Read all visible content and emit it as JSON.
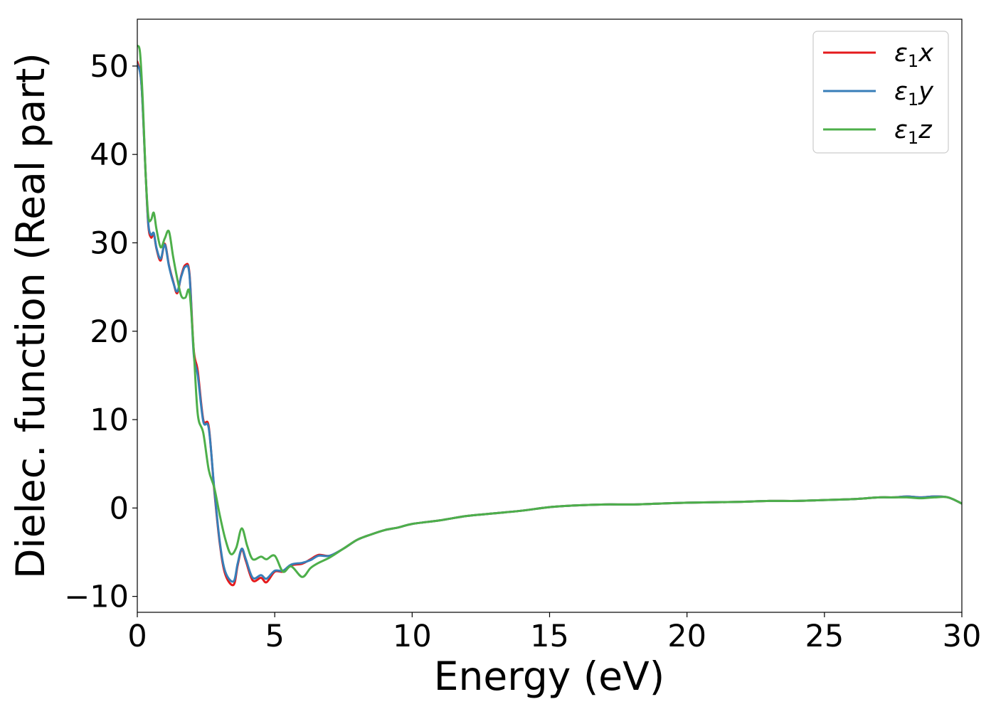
{
  "chart_data": {
    "type": "line",
    "title": "",
    "xlabel": "Energy (eV)",
    "ylabel": "Dielec. function (Real part)",
    "xlim": [
      0,
      30
    ],
    "ylim": [
      -11.8,
      55.3
    ],
    "xticks": [
      0,
      5,
      10,
      15,
      20,
      25,
      30
    ],
    "xtick_labels": [
      "0",
      "5",
      "10",
      "15",
      "20",
      "25",
      "30"
    ],
    "yticks": [
      -10,
      0,
      10,
      20,
      30,
      40,
      50
    ],
    "ytick_labels": [
      "−10",
      "0",
      "10",
      "20",
      "30",
      "40",
      "50"
    ],
    "grid": false,
    "legend_position": "top-right",
    "series": [
      {
        "name": "ε1x",
        "label_main": "ε",
        "label_sub": "1",
        "label_suffix": "x",
        "color": "#e41a1c",
        "x": [
          0,
          0.15,
          0.3,
          0.4,
          0.5,
          0.6,
          0.7,
          0.85,
          1.0,
          1.15,
          1.3,
          1.45,
          1.6,
          1.75,
          1.9,
          2.05,
          2.2,
          2.4,
          2.6,
          2.8,
          3.0,
          3.2,
          3.5,
          3.65,
          3.8,
          3.95,
          4.2,
          4.5,
          4.7,
          5.0,
          5.3,
          5.6,
          6.0,
          6.3,
          6.6,
          7.0,
          7.5,
          8.0,
          8.5,
          9.0,
          9.5,
          10.0,
          11.0,
          12.0,
          13.0,
          14.0,
          15.0,
          16.0,
          17.0,
          18.0,
          19.0,
          20.0,
          21.0,
          22.0,
          23.0,
          24.0,
          25.0,
          26.0,
          27.0,
          27.5,
          28.0,
          28.5,
          29.0,
          29.5,
          30.0
        ],
        "y": [
          50.5,
          48,
          38,
          32,
          30.6,
          31,
          29.3,
          28,
          29.9,
          27.5,
          25.7,
          24.3,
          26.3,
          27.5,
          26.5,
          18,
          15.5,
          10,
          9.2,
          2,
          -4,
          -7.5,
          -8.7,
          -6.5,
          -4.7,
          -6,
          -8.2,
          -7.9,
          -8.4,
          -7.2,
          -7.2,
          -6.5,
          -6.3,
          -5.8,
          -5.3,
          -5.4,
          -4.6,
          -3.6,
          -3.0,
          -2.5,
          -2.2,
          -1.8,
          -1.4,
          -0.9,
          -0.6,
          -0.3,
          0.1,
          0.3,
          0.4,
          0.4,
          0.5,
          0.6,
          0.65,
          0.7,
          0.8,
          0.8,
          0.9,
          1.0,
          1.2,
          1.2,
          1.3,
          1.2,
          1.3,
          1.2,
          0.5
        ]
      },
      {
        "name": "ε1y",
        "label_main": "ε",
        "label_sub": "1",
        "label_suffix": "y",
        "color": "#377eb8",
        "x": [
          0,
          0.15,
          0.3,
          0.4,
          0.5,
          0.6,
          0.7,
          0.85,
          1.0,
          1.15,
          1.3,
          1.45,
          1.6,
          1.75,
          1.9,
          2.05,
          2.2,
          2.4,
          2.6,
          2.8,
          3.0,
          3.2,
          3.5,
          3.65,
          3.8,
          3.95,
          4.2,
          4.5,
          4.7,
          5.0,
          5.3,
          5.6,
          6.0,
          6.3,
          6.6,
          7.0,
          7.5,
          8.0,
          8.5,
          9.0,
          9.5,
          10.0,
          11.0,
          12.0,
          13.0,
          14.0,
          15.0,
          16.0,
          17.0,
          18.0,
          19.0,
          20.0,
          21.0,
          22.0,
          23.0,
          24.0,
          25.0,
          26.0,
          27.0,
          27.5,
          28.0,
          28.5,
          29.0,
          29.5,
          30.0
        ],
        "y": [
          50.2,
          48,
          38,
          32.2,
          30.9,
          31.1,
          29.4,
          28.2,
          29.8,
          27.4,
          25.6,
          24.5,
          26.2,
          27.3,
          26.3,
          17.5,
          15.0,
          9.8,
          9.0,
          2.2,
          -3.8,
          -7.2,
          -8.3,
          -6.3,
          -4.6,
          -5.8,
          -7.9,
          -7.6,
          -8.0,
          -7.1,
          -7.1,
          -6.4,
          -6.2,
          -5.9,
          -5.4,
          -5.4,
          -4.6,
          -3.6,
          -3.0,
          -2.5,
          -2.2,
          -1.8,
          -1.4,
          -0.9,
          -0.6,
          -0.3,
          0.1,
          0.3,
          0.4,
          0.4,
          0.5,
          0.6,
          0.65,
          0.7,
          0.8,
          0.8,
          0.9,
          1.0,
          1.2,
          1.2,
          1.3,
          1.2,
          1.3,
          1.2,
          0.5
        ]
      },
      {
        "name": "ε1z",
        "label_main": "ε",
        "label_sub": "1",
        "label_suffix": "z",
        "color": "#4daf4a",
        "x": [
          0,
          0.1,
          0.2,
          0.3,
          0.4,
          0.5,
          0.6,
          0.7,
          0.85,
          1.0,
          1.15,
          1.3,
          1.45,
          1.6,
          1.75,
          1.9,
          2.05,
          2.2,
          2.4,
          2.6,
          2.8,
          3.0,
          3.2,
          3.4,
          3.6,
          3.8,
          4.0,
          4.2,
          4.5,
          4.7,
          5.0,
          5.3,
          5.6,
          6.0,
          6.3,
          6.6,
          7.0,
          7.5,
          8.0,
          8.5,
          9.0,
          9.5,
          10.0,
          11.0,
          12.0,
          13.0,
          14.0,
          15.0,
          16.0,
          17.0,
          18.0,
          19.0,
          20.0,
          21.0,
          22.0,
          23.0,
          24.0,
          25.0,
          26.0,
          27.0,
          27.5,
          28.0,
          28.5,
          29.0,
          29.5,
          30.0
        ],
        "y": [
          52.3,
          51.5,
          46,
          38,
          33,
          32.6,
          33.4,
          31.5,
          29.5,
          30.5,
          31.3,
          28.5,
          26,
          24.0,
          23.8,
          24.4,
          18,
          10.6,
          8.5,
          4.3,
          2.3,
          -0.8,
          -3.5,
          -5.2,
          -4.5,
          -2.3,
          -4.3,
          -5.8,
          -5.5,
          -5.8,
          -5.4,
          -7.2,
          -6.6,
          -7.8,
          -6.8,
          -6.2,
          -5.6,
          -4.6,
          -3.6,
          -3.0,
          -2.5,
          -2.2,
          -1.8,
          -1.4,
          -0.9,
          -0.6,
          -0.3,
          0.1,
          0.3,
          0.4,
          0.4,
          0.5,
          0.6,
          0.65,
          0.7,
          0.8,
          0.8,
          0.9,
          1.0,
          1.2,
          1.2,
          1.2,
          1.1,
          1.2,
          1.2,
          0.5
        ]
      }
    ]
  }
}
